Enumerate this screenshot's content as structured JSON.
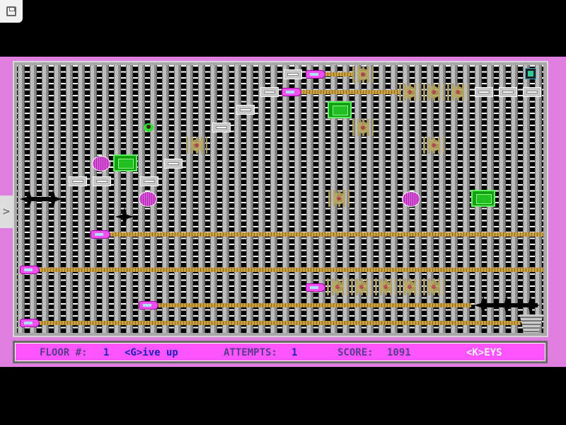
{
  "status_bar": {
    "floor_label": "FLOOR #:",
    "floor_value": "1",
    "give_up": "<G>ive up",
    "attempts_label": "ATTEMPTS:",
    "attempts_value": "1",
    "score_label": "SCORE:",
    "score_value": "1091",
    "keys": "<K>EYS"
  },
  "side_tab": {
    "label": ">"
  },
  "colors": {
    "status_bg": "#ff55ff",
    "border_bg": "#e07ee0",
    "label": "#5a3a8a",
    "value": "#2020c0"
  },
  "icons": {
    "save": "floppy-disk-icon",
    "player": "player-sprite",
    "exit": "bucket-exit-icon"
  }
}
